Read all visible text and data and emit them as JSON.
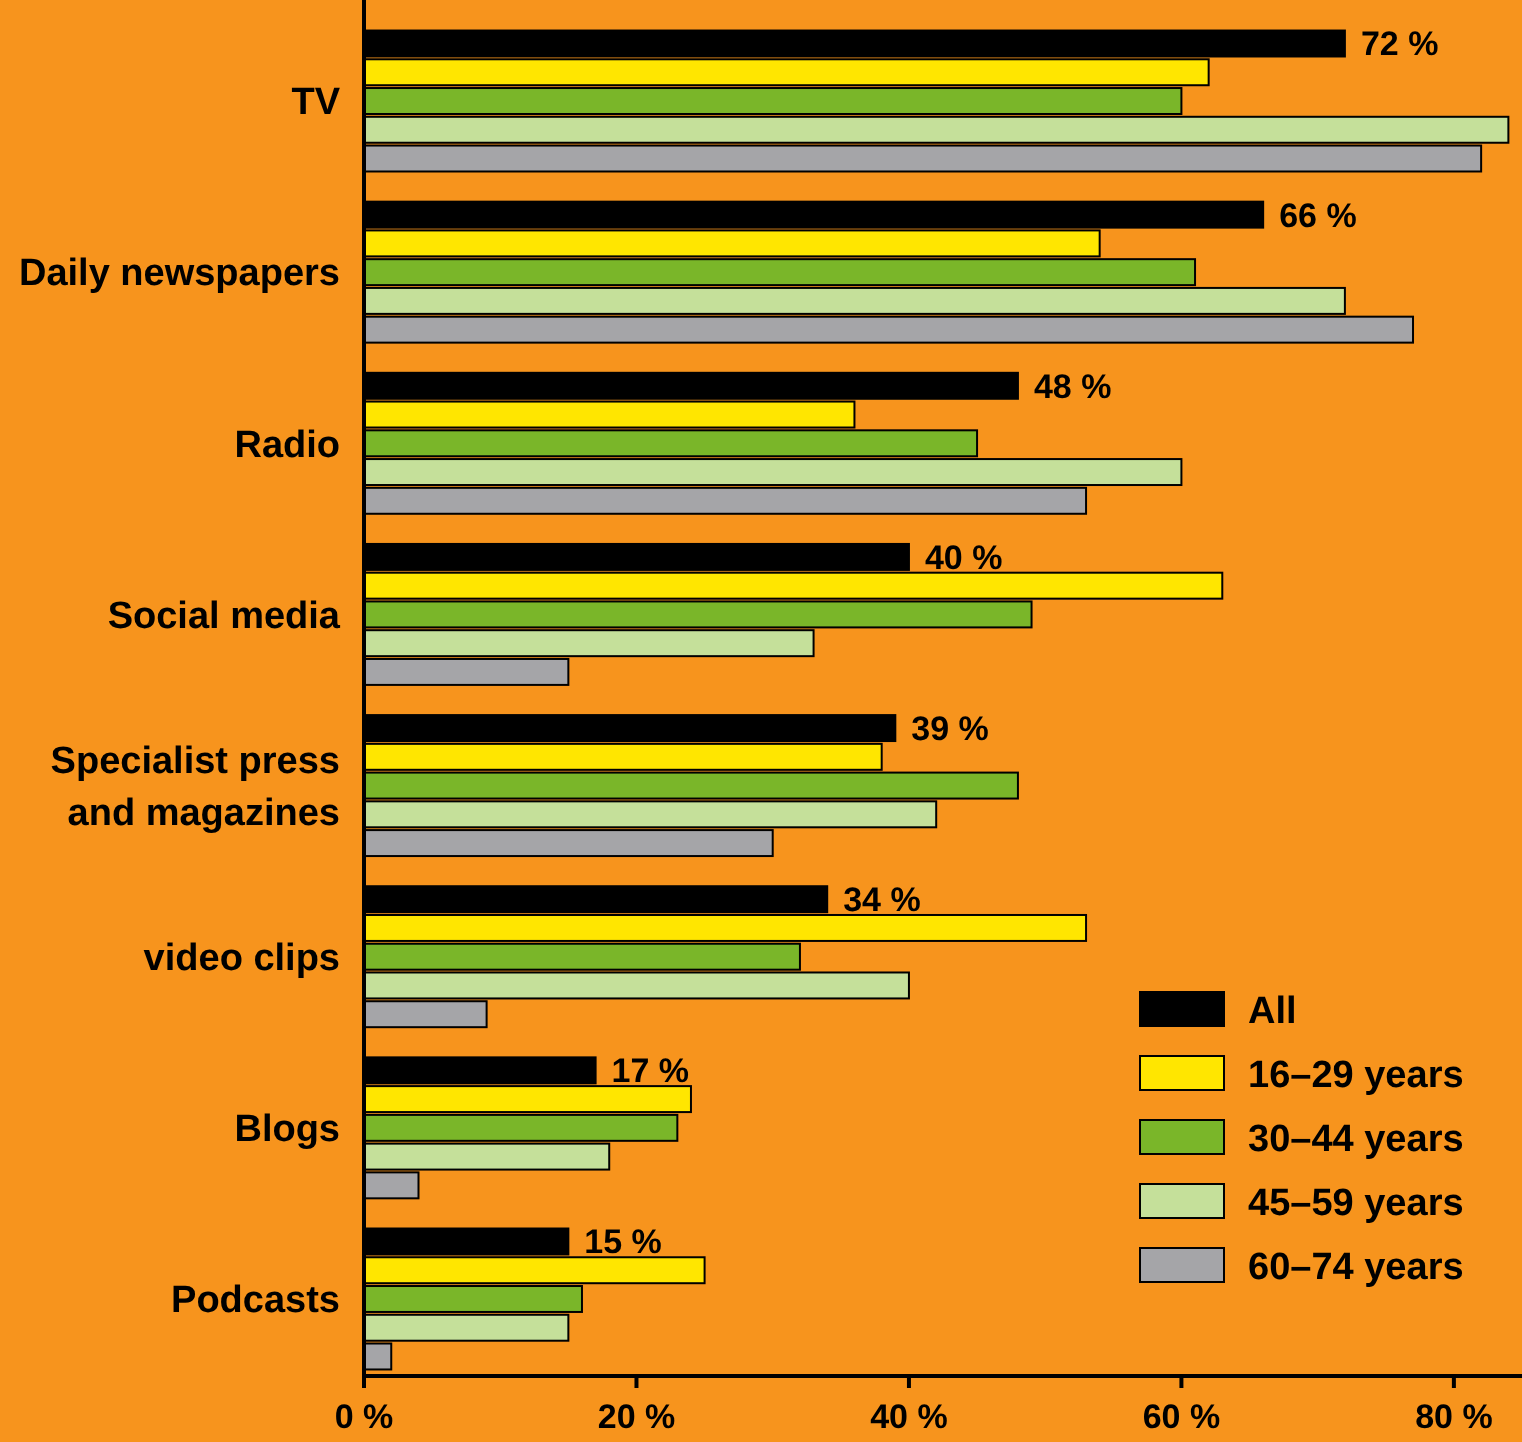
{
  "chart_data": {
    "type": "bar",
    "orientation": "horizontal",
    "categories": [
      "TV",
      "Daily newspapers",
      "Radio",
      "Social media",
      "Specialist press and magazines",
      "video clips",
      "Blogs",
      "Podcasts"
    ],
    "series": [
      {
        "name": "All",
        "color": "#000000",
        "values": [
          72,
          66,
          48,
          40,
          39,
          34,
          17,
          15
        ],
        "value_labels": [
          "72 %",
          "66 %",
          "48 %",
          "40 %",
          "39 %",
          "34 %",
          "17 %",
          "15 %"
        ]
      },
      {
        "name": "16–29 years",
        "color": "#ffe600",
        "values": [
          62,
          54,
          36,
          63,
          38,
          53,
          24,
          25
        ]
      },
      {
        "name": "30–44 years",
        "color": "#7ab629",
        "values": [
          60,
          61,
          45,
          49,
          48,
          32,
          23,
          16
        ]
      },
      {
        "name": "45–59 years",
        "color": "#c5e09a",
        "values": [
          84,
          72,
          60,
          33,
          42,
          40,
          18,
          15
        ]
      },
      {
        "name": "60–74 years",
        "color": "#a5a5a8",
        "values": [
          82,
          77,
          53,
          15,
          30,
          9,
          4,
          2
        ]
      }
    ],
    "xlim": [
      0,
      85
    ],
    "xticks": [
      {
        "value": 0,
        "label": "0 %"
      },
      {
        "value": 20,
        "label": "20 %"
      },
      {
        "value": 40,
        "label": "40 %"
      },
      {
        "value": 60,
        "label": "60 %"
      },
      {
        "value": 80,
        "label": "80 %"
      }
    ],
    "legend": "bottom right",
    "grid": false
  }
}
